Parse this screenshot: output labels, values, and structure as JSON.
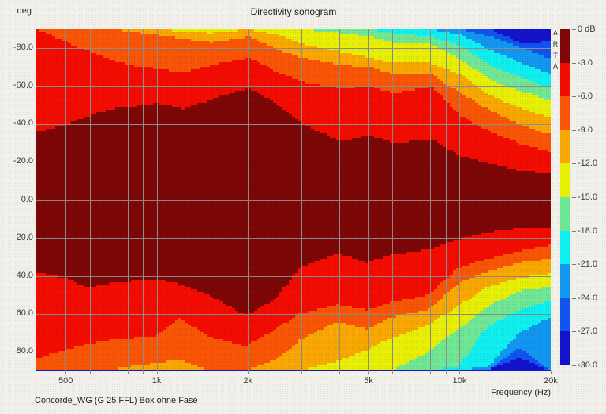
{
  "title": "Directivity sonogram",
  "footer": "Concorde_WG (G 25 FFL) Box ohne Fase",
  "watermark": "ARTA",
  "y_axis": {
    "label": "deg",
    "ticks": [
      "-80.0",
      "-60.0",
      "-40.0",
      "-20.0",
      "0.0",
      "20.0",
      "40.0",
      "60.0",
      "80.0"
    ],
    "tick_angles": [
      -80,
      -60,
      -40,
      -20,
      0,
      20,
      40,
      60,
      80
    ]
  },
  "x_axis": {
    "label": "Frequency (Hz)",
    "ticks": [
      {
        "label": "500",
        "hz": 500
      },
      {
        "label": "1k",
        "hz": 1000
      },
      {
        "label": "2k",
        "hz": 2000
      },
      {
        "label": "5k",
        "hz": 5000
      },
      {
        "label": "10k",
        "hz": 10000
      },
      {
        "label": "20k",
        "hz": 20000
      }
    ]
  },
  "legend": {
    "labels": [
      "0 dB",
      "-3.0",
      "-6.0",
      "-9.0",
      "-12.0",
      "-15.0",
      "-18.0",
      "-21.0",
      "-24.0",
      "-27.0",
      "-30.0"
    ],
    "colors": [
      "#7d0606",
      "#f20c02",
      "#f85506",
      "#f9a703",
      "#e8ef06",
      "#6fe795",
      "#0fefef",
      "#1197ef",
      "#1153ef",
      "#1512cb"
    ]
  },
  "chart_data": {
    "type": "heatmap",
    "title": "Directivity sonogram",
    "xlabel": "Frequency (Hz)",
    "ylabel": "deg",
    "x_range_hz": [
      400,
      20000
    ],
    "x_scale": "log",
    "angle_range_deg": [
      -90,
      90
    ],
    "level_step_db": 3,
    "levels_db": [
      0,
      -3,
      -6,
      -9,
      -12,
      -15,
      -18,
      -21,
      -24,
      -27,
      -30
    ],
    "grid_frequencies_hz": [
      500,
      600,
      700,
      800,
      900,
      1000,
      2000,
      3000,
      4000,
      5000,
      6000,
      7000,
      8000,
      9000,
      10000,
      20000
    ],
    "grid_angles_deg": [
      -80,
      -60,
      -40,
      -20,
      0,
      20,
      40,
      60,
      80
    ],
    "frequencies_hz": [
      400,
      500,
      600,
      700,
      800,
      1000,
      1200,
      1500,
      2000,
      2500,
      3000,
      4000,
      5000,
      6000,
      8000,
      10000,
      12500,
      16000,
      20000
    ],
    "floor_color": "#1512cb",
    "regions": [
      {
        "level_db": -27,
        "color": "#1153ef",
        "upper": [
          90,
          90,
          90,
          90,
          90,
          90,
          90,
          90,
          90,
          90,
          90,
          90,
          90,
          90,
          90,
          90,
          90,
          82,
          84
        ],
        "lower": [
          90,
          90,
          90,
          90,
          90,
          90,
          90,
          90,
          90,
          90,
          90,
          90,
          90,
          90,
          90,
          90,
          90,
          83,
          90
        ]
      },
      {
        "level_db": -24,
        "color": "#1197ef",
        "upper": [
          90,
          90,
          90,
          90,
          90,
          90,
          90,
          90,
          90,
          90,
          90,
          90,
          90,
          90,
          90,
          90,
          86,
          80,
          74
        ],
        "lower": [
          90,
          90,
          90,
          90,
          90,
          90,
          90,
          90,
          90,
          90,
          90,
          90,
          90,
          90,
          90,
          90,
          90,
          78,
          90
        ]
      },
      {
        "level_db": -21,
        "color": "#0fefef",
        "upper": [
          90,
          90,
          90,
          90,
          90,
          90,
          90,
          90,
          90,
          90,
          90,
          90,
          90,
          90,
          90,
          87,
          79,
          72,
          66
        ],
        "lower": [
          90,
          90,
          90,
          90,
          90,
          90,
          90,
          90,
          90,
          90,
          90,
          90,
          90,
          90,
          90,
          90,
          88,
          70,
          62
        ]
      },
      {
        "level_db": -18,
        "color": "#6fe795",
        "upper": [
          90,
          90,
          90,
          90,
          90,
          90,
          90,
          90,
          90,
          90,
          90,
          90,
          90,
          88,
          86,
          81,
          71,
          64,
          59
        ],
        "lower": [
          90,
          90,
          90,
          90,
          90,
          90,
          90,
          90,
          90,
          90,
          90,
          90,
          90,
          90,
          90,
          88,
          67,
          58,
          53
        ]
      },
      {
        "level_db": -15,
        "color": "#e8ef06",
        "upper": [
          90,
          90,
          90,
          90,
          90,
          90,
          90,
          90,
          90,
          90,
          90,
          88,
          86,
          83,
          82,
          74,
          63,
          57,
          52
        ],
        "lower": [
          90,
          90,
          90,
          90,
          90,
          90,
          90,
          90,
          90,
          90,
          90,
          90,
          90,
          90,
          80,
          68,
          56,
          48,
          46
        ]
      },
      {
        "level_db": -12,
        "color": "#f9a703",
        "upper": [
          90,
          90,
          90,
          90,
          90,
          90,
          89,
          88,
          90,
          87,
          82,
          78,
          75,
          72,
          72,
          66,
          55,
          48,
          43
        ],
        "lower": [
          90,
          90,
          90,
          90,
          90,
          90,
          89,
          90,
          90,
          90,
          90,
          85,
          79,
          73,
          66,
          56,
          46,
          41,
          39
        ]
      },
      {
        "level_db": -9,
        "color": "#f85506",
        "upper": [
          90,
          90,
          90,
          90,
          89,
          87,
          85,
          83,
          86,
          79,
          75,
          71,
          70,
          66,
          66,
          56,
          47,
          39,
          34
        ],
        "lower": [
          90,
          90,
          90,
          90,
          88,
          86,
          84,
          90,
          90,
          84,
          74,
          64,
          68,
          62,
          58,
          44,
          38,
          33,
          31
        ]
      },
      {
        "level_db": -6,
        "color": "#f20c02",
        "upper": [
          90,
          83,
          78,
          74,
          71,
          69,
          67,
          71,
          75,
          67,
          62,
          59,
          60,
          56,
          60,
          44,
          36,
          29,
          25
        ],
        "lower": [
          84,
          79,
          76,
          74,
          73,
          72,
          62,
          72,
          77,
          68,
          60,
          55,
          58,
          54,
          50,
          36,
          31,
          27,
          24
        ]
      },
      {
        "level_db": -3,
        "color": "#7d0606",
        "upper": [
          36,
          40,
          45,
          48,
          49,
          51,
          48,
          53,
          59,
          50,
          40,
          31,
          34,
          30,
          32,
          23,
          19,
          15,
          14
        ],
        "lower": [
          38,
          41,
          46,
          44,
          43,
          42,
          44,
          50,
          61,
          52,
          36,
          28,
          33,
          29,
          26,
          21,
          17,
          15,
          15
        ]
      }
    ]
  }
}
